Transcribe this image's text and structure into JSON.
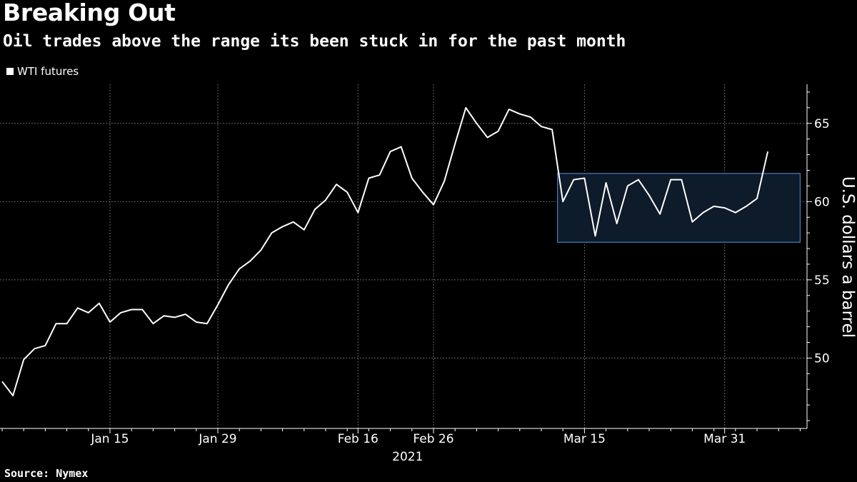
{
  "title": "Breaking Out",
  "subtitle": "Oil trades above the range its been stuck in for the past month",
  "source": "Source: Nymex",
  "colors": {
    "background": "#000000",
    "line": "#ffffff",
    "grid": "#666666",
    "range_fill": "#0d1b2a",
    "range_stroke": "#4a7fc1"
  },
  "chart_data": {
    "type": "line",
    "series": [
      {
        "name": "WTI futures",
        "values": [
          48.5,
          47.6,
          49.9,
          50.6,
          50.8,
          52.2,
          52.2,
          53.2,
          52.9,
          53.5,
          52.3,
          52.9,
          53.1,
          53.1,
          52.2,
          52.7,
          52.6,
          52.8,
          52.3,
          52.2,
          53.4,
          54.7,
          55.7,
          56.2,
          56.9,
          58.0,
          58.4,
          58.7,
          58.2,
          59.5,
          60.1,
          61.1,
          60.6,
          59.3,
          61.5,
          61.7,
          63.2,
          63.5,
          61.5,
          60.6,
          59.8,
          61.3,
          63.7,
          66.0,
          65.0,
          64.1,
          64.5,
          65.9,
          65.6,
          65.4,
          64.8,
          64.6,
          60.0,
          61.4,
          61.5,
          57.8,
          61.2,
          58.6,
          61.0,
          61.4,
          60.4,
          59.2,
          61.4,
          61.4,
          58.7,
          59.3,
          59.7,
          59.6,
          59.3,
          59.7,
          60.2,
          63.2
        ]
      }
    ],
    "x_ticks": [
      "Jan 15",
      "Jan 29",
      "Feb 16",
      "Feb 26",
      "Mar 15",
      "Mar 31"
    ],
    "x_tick_index": [
      10,
      20,
      33,
      40,
      54,
      67
    ],
    "x_sublabel": "2021",
    "y_ticks": [
      50,
      55,
      60,
      65
    ],
    "ylim": [
      45.5,
      67.5
    ],
    "ylabel": "U.S. dollars a barrel",
    "grid": true,
    "legend": "top-left",
    "range_box": {
      "x_start_index": 51.5,
      "x_end_index": 74,
      "low": 57.4,
      "high": 61.8
    }
  }
}
